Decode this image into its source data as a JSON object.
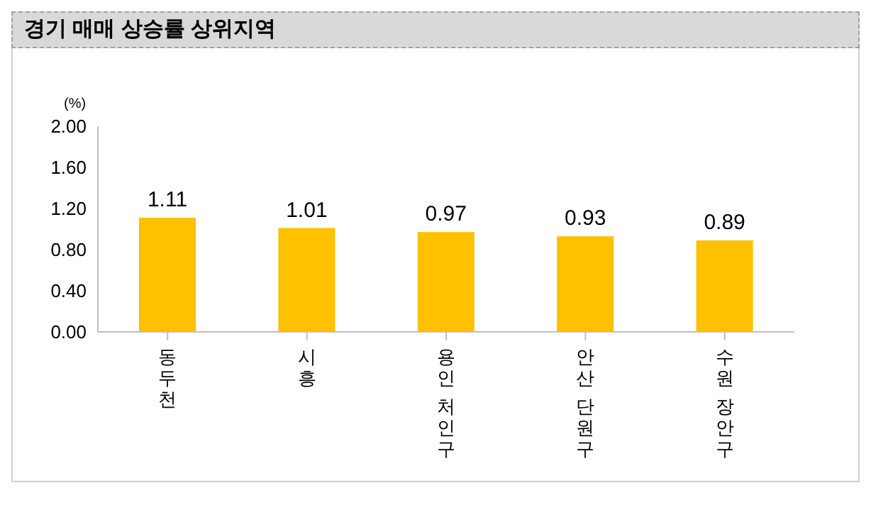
{
  "chart_data": {
    "type": "bar",
    "title": "경기 매매 상승률 상위지역",
    "ylabel": "(%)",
    "categories": [
      "동두천",
      "시흥",
      "용인 처인구",
      "안산 단원구",
      "수원 장안구"
    ],
    "values": [
      1.11,
      1.01,
      0.97,
      0.93,
      0.89
    ],
    "color": "#ffc000",
    "ylim": [
      0,
      2
    ],
    "yticks": [
      {
        "value": 0,
        "label": "0.00"
      },
      {
        "value": 0.4,
        "label": "0.40"
      },
      {
        "value": 0.8,
        "label": "0.80"
      },
      {
        "value": 1.2,
        "label": "1.20"
      },
      {
        "value": 1.6,
        "label": "1.60"
      },
      {
        "value": 2,
        "label": "2.00"
      }
    ],
    "data_labels": true,
    "grid": false,
    "legend": false
  }
}
